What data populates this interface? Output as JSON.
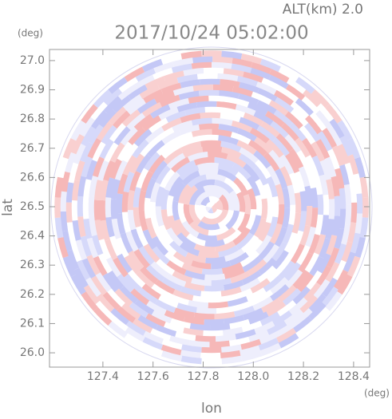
{
  "chart_data": {
    "type": "radar-ppi",
    "title": "2017/10/24 05:02:00",
    "subtitle": "ALT(km) 2.0",
    "x_label": "lon",
    "y_label": "lat",
    "x_unit": "(deg)",
    "y_unit": "(deg)",
    "xlim": [
      127.187,
      128.464
    ],
    "ylim": [
      25.951,
      27.038
    ],
    "xticks": [
      127.4,
      127.6,
      127.8,
      {
        "value": 128,
        "label": "128.0"
      },
      128.2,
      128.4
    ],
    "yticks": [
      {
        "value": 26,
        "label": "26.0"
      },
      26.1,
      26.2,
      26.3,
      26.4,
      26.5,
      26.6,
      26.7,
      26.8,
      26.9,
      {
        "value": 27,
        "label": "27.0"
      }
    ]
  }
}
